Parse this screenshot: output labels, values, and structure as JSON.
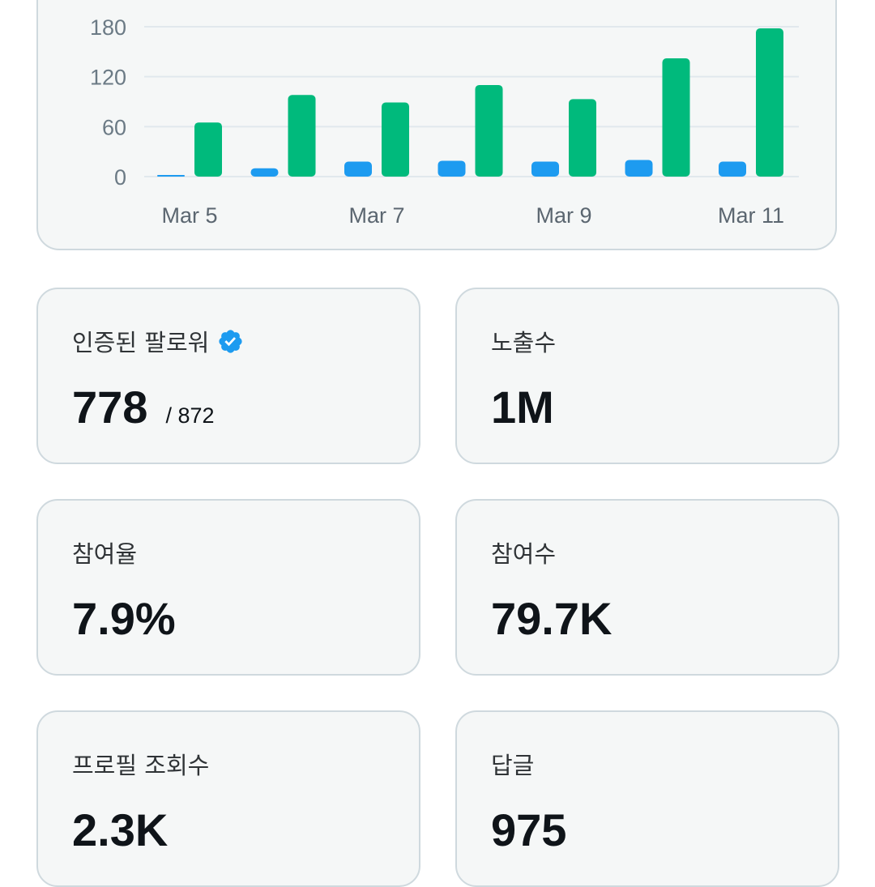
{
  "colors": {
    "blue_series": "#1d9bf0",
    "green_series": "#00ba7c",
    "card_bg": "#f5f7f7",
    "card_border": "#cfd9de",
    "verified": "#1d9bf0"
  },
  "chart_data": {
    "type": "bar",
    "categories": [
      "Mar 5",
      "Mar 6",
      "Mar 7",
      "Mar 8",
      "Mar 9",
      "Mar 10",
      "Mar 11"
    ],
    "x_tick_labels": [
      "Mar 5",
      "Mar 7",
      "Mar 9",
      "Mar 11"
    ],
    "y_ticks": [
      "0",
      "60",
      "120",
      "180"
    ],
    "ylim": [
      0,
      180
    ],
    "grid": true,
    "series": [
      {
        "color": "#1d9bf0",
        "values": [
          1,
          10,
          18,
          19,
          18,
          20,
          18
        ]
      },
      {
        "color": "#00ba7c",
        "values": [
          65,
          98,
          89,
          110,
          93,
          142,
          178
        ]
      }
    ]
  },
  "stats": [
    {
      "label": "인증된 팔로워",
      "value": "778",
      "sub": "/ 872",
      "icon": "verified-badge-icon"
    },
    {
      "label": "노출수",
      "value": "1M"
    },
    {
      "label": "참여율",
      "value": "7.9%"
    },
    {
      "label": "참여수",
      "value": "79.7K"
    },
    {
      "label": "프로필 조회수",
      "value": "2.3K"
    },
    {
      "label": "답글",
      "value": "975"
    }
  ]
}
